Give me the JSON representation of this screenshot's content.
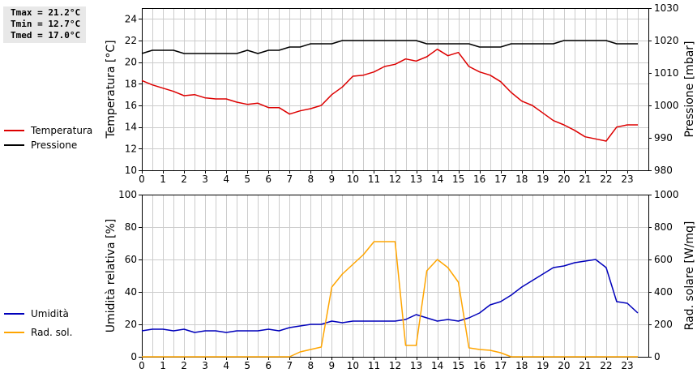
{
  "stats": {
    "tmax": "Tmax = 21.2°C",
    "tmin": "Tmin = 12.7°C",
    "tmed": "Tmed = 17.0°C"
  },
  "chart_data": [
    {
      "type": "line",
      "xlim": [
        0,
        24
      ],
      "x_ticks": [
        0,
        1,
        2,
        3,
        4,
        5,
        6,
        7,
        8,
        9,
        10,
        11,
        12,
        13,
        14,
        15,
        16,
        17,
        18,
        19,
        20,
        21,
        22,
        23
      ],
      "ylabel": "Temperatura [°C]",
      "ylim": [
        10,
        25
      ],
      "y_ticks": [
        10,
        12,
        14,
        16,
        18,
        20,
        22,
        24
      ],
      "y2label": "Pressione [mbar]",
      "y2lim": [
        980,
        1030
      ],
      "y2_ticks": [
        980,
        990,
        1000,
        1010,
        1020,
        1030
      ],
      "grid": true,
      "legend": "left",
      "colors": {
        "Temperatura": "#dd0000",
        "Pressione": "#000000"
      },
      "series": [
        {
          "name": "Temperatura",
          "axis": "left",
          "x": [
            0,
            0.5,
            1,
            1.5,
            2,
            2.5,
            3,
            3.5,
            4,
            4.5,
            5,
            5.5,
            6,
            6.5,
            7,
            7.5,
            8,
            8.5,
            9,
            9.5,
            10,
            10.5,
            11,
            11.5,
            12,
            12.5,
            13,
            13.5,
            14,
            14.5,
            15,
            15.5,
            16,
            16.5,
            17,
            17.5,
            18,
            18.5,
            19,
            19.5,
            20,
            20.5,
            21,
            21.5,
            22,
            22.5,
            23,
            23.5
          ],
          "values": [
            18.3,
            17.9,
            17.6,
            17.3,
            16.9,
            17.0,
            16.7,
            16.6,
            16.6,
            16.3,
            16.1,
            16.2,
            15.8,
            15.8,
            15.2,
            15.5,
            15.7,
            16.0,
            17.0,
            17.7,
            18.7,
            18.8,
            19.1,
            19.6,
            19.8,
            20.3,
            20.1,
            20.5,
            21.2,
            20.6,
            20.9,
            19.6,
            19.1,
            18.8,
            18.2,
            17.2,
            16.4,
            16.0,
            15.3,
            14.6,
            14.2,
            13.7,
            13.1,
            12.9,
            12.7,
            14.0,
            14.2,
            14.2
          ]
        },
        {
          "name": "Pressione",
          "axis": "right",
          "x": [
            0,
            0.5,
            1,
            1.5,
            2,
            2.5,
            3,
            3.5,
            4,
            4.5,
            5,
            5.5,
            6,
            6.5,
            7,
            7.5,
            8,
            8.5,
            9,
            9.5,
            10,
            10.5,
            11,
            11.5,
            12,
            12.5,
            13,
            13.5,
            14,
            14.5,
            15,
            15.5,
            16,
            16.5,
            17,
            17.5,
            18,
            18.5,
            19,
            19.5,
            20,
            20.5,
            21,
            21.5,
            22,
            22.5,
            23,
            23.5
          ],
          "values": [
            1016,
            1017,
            1017,
            1017,
            1016,
            1016,
            1016,
            1016,
            1016,
            1016,
            1017,
            1016,
            1017,
            1017,
            1018,
            1018,
            1019,
            1019,
            1019,
            1020,
            1020,
            1020,
            1020,
            1020,
            1020,
            1020,
            1020,
            1019,
            1019,
            1019,
            1019,
            1019,
            1018,
            1018,
            1018,
            1019,
            1019,
            1019,
            1019,
            1019,
            1020,
            1020,
            1020,
            1020,
            1020,
            1019,
            1019,
            1019
          ]
        }
      ]
    },
    {
      "type": "line",
      "xlim": [
        0,
        24
      ],
      "x_ticks": [
        0,
        1,
        2,
        3,
        4,
        5,
        6,
        7,
        8,
        9,
        10,
        11,
        12,
        13,
        14,
        15,
        16,
        17,
        18,
        19,
        20,
        21,
        22,
        23
      ],
      "ylabel": "Umidità relativa [%]",
      "ylim": [
        0,
        100
      ],
      "y_ticks": [
        0,
        20,
        40,
        60,
        80,
        100
      ],
      "y2label": "Rad. solare [W/mq]",
      "y2lim": [
        0,
        1000
      ],
      "y2_ticks": [
        0,
        200,
        400,
        600,
        800,
        1000
      ],
      "grid": true,
      "legend": "left",
      "colors": {
        "Umidità": "#0000bb",
        "Rad. sol.": "#ffa500"
      },
      "series": [
        {
          "name": "Umidità",
          "axis": "left",
          "x": [
            0,
            0.5,
            1,
            1.5,
            2,
            2.5,
            3,
            3.5,
            4,
            4.5,
            5,
            5.5,
            6,
            6.5,
            7,
            7.5,
            8,
            8.5,
            9,
            9.5,
            10,
            10.5,
            11,
            11.5,
            12,
            12.5,
            13,
            13.5,
            14,
            14.5,
            15,
            15.5,
            16,
            16.5,
            17,
            17.5,
            18,
            18.5,
            19,
            19.5,
            20,
            20.5,
            21,
            21.5,
            22,
            22.5,
            23,
            23.5
          ],
          "values": [
            16,
            17,
            17,
            16,
            17,
            15,
            16,
            16,
            15,
            16,
            16,
            16,
            17,
            16,
            18,
            19,
            20,
            20,
            22,
            21,
            22,
            22,
            22,
            22,
            22,
            23,
            26,
            24,
            22,
            23,
            22,
            24,
            27,
            32,
            34,
            38,
            43,
            47,
            51,
            55,
            56,
            58,
            59,
            60,
            55,
            34,
            33,
            27
          ]
        },
        {
          "name": "Rad. sol.",
          "axis": "right",
          "x": [
            0,
            1,
            2,
            3,
            4,
            5,
            6,
            7,
            7.5,
            8,
            8.5,
            9,
            9.5,
            10,
            10.5,
            11,
            11.5,
            12,
            12.5,
            13,
            13.5,
            14,
            14.5,
            15,
            15.5,
            16,
            16.5,
            17,
            17.5,
            18,
            19,
            20,
            21,
            22,
            23,
            23.5
          ],
          "values": [
            0,
            0,
            0,
            0,
            0,
            0,
            0,
            0,
            30,
            45,
            60,
            430,
            510,
            570,
            630,
            710,
            710,
            710,
            70,
            70,
            530,
            600,
            550,
            460,
            55,
            45,
            40,
            25,
            0,
            0,
            0,
            0,
            0,
            0,
            0,
            0
          ]
        }
      ]
    }
  ]
}
